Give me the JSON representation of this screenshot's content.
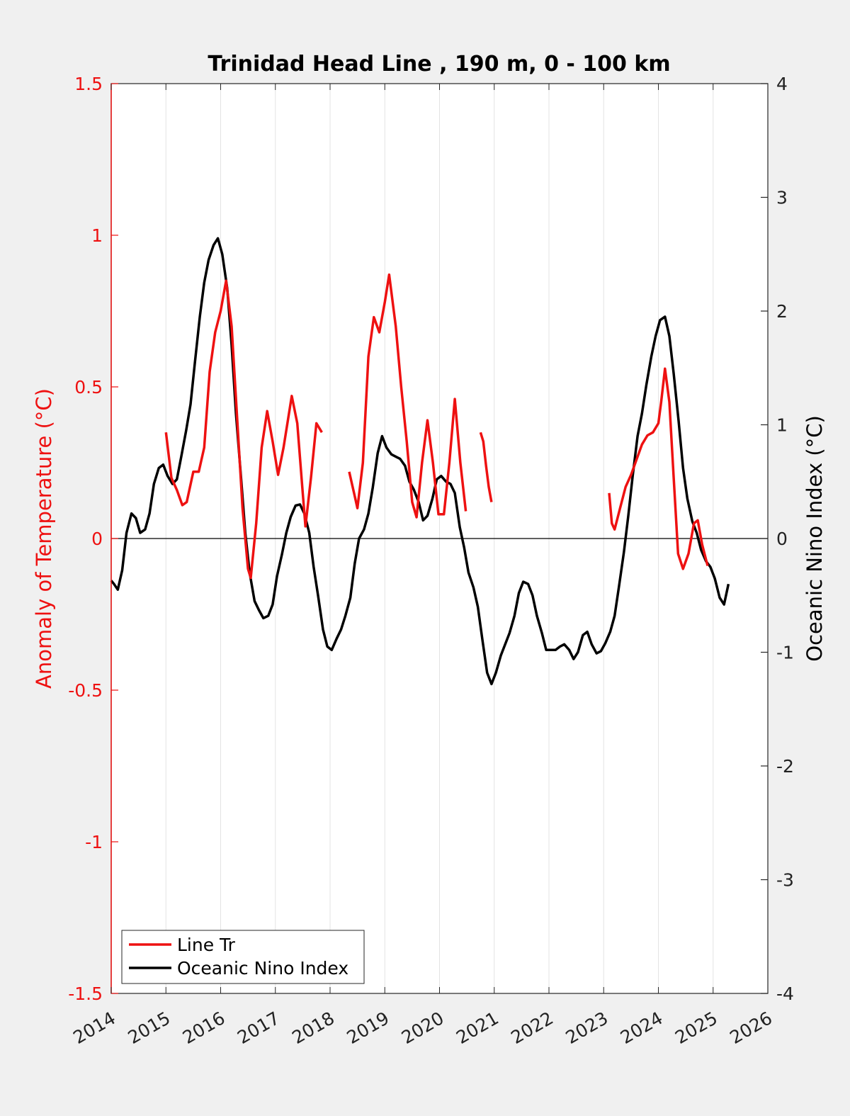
{
  "chart_data": {
    "type": "line",
    "title": "Trinidad Head Line , 190 m, 0 - 100 km",
    "xlabel": "",
    "ylabel_left": "Anomaly of Temperature (°C)",
    "ylabel_right": "Oceanic Nino Index (°C)",
    "xlim": [
      2014,
      2026
    ],
    "ylim_left": [
      -1.5,
      1.5
    ],
    "ylim_right": [
      -4,
      4
    ],
    "x_ticks": [
      "2014",
      "2015",
      "2016",
      "2017",
      "2018",
      "2019",
      "2020",
      "2021",
      "2022",
      "2023",
      "2024",
      "2025",
      "2026"
    ],
    "y_left_ticks": [
      "1.5",
      "1",
      "0.5",
      "0",
      "-0.5",
      "-1",
      "-1.5"
    ],
    "y_right_ticks": [
      "4",
      "3",
      "2",
      "1",
      "0",
      "-1",
      "-2",
      "-3",
      "-4"
    ],
    "grid": "vertical",
    "legend_position": "bottom-left",
    "colors": {
      "left_axis": "#ee1111",
      "line_tr": "#ee1111",
      "oni": "#000000"
    },
    "series": [
      {
        "name": "Line Tr",
        "axis": "left",
        "color": "#ee1111",
        "segments": [
          [
            [
              2015.0,
              0.35
            ],
            [
              2015.1,
              0.2
            ],
            [
              2015.2,
              0.16
            ],
            [
              2015.3,
              0.11
            ],
            [
              2015.38,
              0.12
            ],
            [
              2015.5,
              0.22
            ],
            [
              2015.6,
              0.22
            ],
            [
              2015.7,
              0.3
            ],
            [
              2015.8,
              0.55
            ],
            [
              2015.9,
              0.68
            ],
            [
              2016.0,
              0.75
            ],
            [
              2016.1,
              0.85
            ],
            [
              2016.2,
              0.7
            ],
            [
              2016.3,
              0.4
            ],
            [
              2016.4,
              0.1
            ],
            [
              2016.5,
              -0.1
            ],
            [
              2016.55,
              -0.13
            ],
            [
              2016.65,
              0.05
            ],
            [
              2016.75,
              0.3
            ],
            [
              2016.85,
              0.42
            ],
            [
              2016.95,
              0.32
            ],
            [
              2017.05,
              0.21
            ],
            [
              2017.15,
              0.3
            ],
            [
              2017.3,
              0.47
            ],
            [
              2017.4,
              0.38
            ],
            [
              2017.5,
              0.15
            ],
            [
              2017.55,
              0.04
            ],
            [
              2017.65,
              0.2
            ],
            [
              2017.75,
              0.38
            ],
            [
              2017.85,
              0.35
            ]
          ],
          [
            [
              2018.35,
              0.22
            ],
            [
              2018.45,
              0.14
            ],
            [
              2018.5,
              0.1
            ],
            [
              2018.6,
              0.25
            ],
            [
              2018.7,
              0.6
            ],
            [
              2018.8,
              0.73
            ],
            [
              2018.9,
              0.68
            ],
            [
              2019.0,
              0.78
            ],
            [
              2019.08,
              0.87
            ],
            [
              2019.2,
              0.7
            ],
            [
              2019.3,
              0.5
            ],
            [
              2019.4,
              0.32
            ],
            [
              2019.5,
              0.12
            ],
            [
              2019.58,
              0.07
            ],
            [
              2019.68,
              0.25
            ],
            [
              2019.78,
              0.39
            ],
            [
              2019.88,
              0.25
            ],
            [
              2019.98,
              0.08
            ],
            [
              2020.08,
              0.08
            ],
            [
              2020.18,
              0.25
            ],
            [
              2020.28,
              0.46
            ],
            [
              2020.38,
              0.25
            ],
            [
              2020.48,
              0.09
            ]
          ],
          [
            [
              2020.75,
              0.35
            ],
            [
              2020.8,
              0.32
            ],
            [
              2020.85,
              0.24
            ],
            [
              2020.9,
              0.17
            ],
            [
              2020.95,
              0.12
            ]
          ],
          [
            [
              2023.1,
              0.15
            ],
            [
              2023.15,
              0.05
            ],
            [
              2023.2,
              0.03
            ],
            [
              2023.3,
              0.1
            ],
            [
              2023.4,
              0.17
            ],
            [
              2023.5,
              0.21
            ],
            [
              2023.6,
              0.26
            ],
            [
              2023.7,
              0.31
            ],
            [
              2023.8,
              0.34
            ],
            [
              2023.9,
              0.35
            ],
            [
              2024.0,
              0.38
            ],
            [
              2024.05,
              0.45
            ],
            [
              2024.12,
              0.56
            ],
            [
              2024.2,
              0.45
            ],
            [
              2024.28,
              0.2
            ],
            [
              2024.36,
              -0.05
            ],
            [
              2024.45,
              -0.1
            ],
            [
              2024.55,
              -0.05
            ],
            [
              2024.65,
              0.05
            ],
            [
              2024.72,
              0.06
            ],
            [
              2024.8,
              -0.02
            ],
            [
              2024.9,
              -0.09
            ]
          ]
        ]
      },
      {
        "name": "Oceanic Nino Index",
        "axis": "right",
        "color": "#000000",
        "segments": [
          [
            [
              2014.0,
              -0.37
            ],
            [
              2014.05,
              -0.4
            ],
            [
              2014.12,
              -0.45
            ],
            [
              2014.2,
              -0.28
            ],
            [
              2014.28,
              0.05
            ],
            [
              2014.37,
              0.22
            ],
            [
              2014.45,
              0.18
            ],
            [
              2014.53,
              0.05
            ],
            [
              2014.62,
              0.08
            ],
            [
              2014.7,
              0.22
            ],
            [
              2014.78,
              0.48
            ],
            [
              2014.87,
              0.62
            ],
            [
              2014.95,
              0.65
            ],
            [
              2015.03,
              0.55
            ],
            [
              2015.12,
              0.48
            ],
            [
              2015.2,
              0.52
            ],
            [
              2015.28,
              0.72
            ],
            [
              2015.37,
              0.95
            ],
            [
              2015.45,
              1.18
            ],
            [
              2015.53,
              1.55
            ],
            [
              2015.62,
              1.95
            ],
            [
              2015.7,
              2.25
            ],
            [
              2015.78,
              2.45
            ],
            [
              2015.87,
              2.58
            ],
            [
              2015.95,
              2.64
            ],
            [
              2016.03,
              2.5
            ],
            [
              2016.12,
              2.2
            ],
            [
              2016.2,
              1.7
            ],
            [
              2016.28,
              1.1
            ],
            [
              2016.37,
              0.55
            ],
            [
              2016.45,
              0.05
            ],
            [
              2016.53,
              -0.3
            ],
            [
              2016.62,
              -0.55
            ],
            [
              2016.7,
              -0.63
            ],
            [
              2016.78,
              -0.7
            ],
            [
              2016.87,
              -0.68
            ],
            [
              2016.95,
              -0.58
            ],
            [
              2017.03,
              -0.33
            ],
            [
              2017.12,
              -0.14
            ],
            [
              2017.2,
              0.05
            ],
            [
              2017.28,
              0.19
            ],
            [
              2017.37,
              0.29
            ],
            [
              2017.45,
              0.3
            ],
            [
              2017.53,
              0.22
            ],
            [
              2017.62,
              0.05
            ],
            [
              2017.7,
              -0.25
            ],
            [
              2017.78,
              -0.5
            ],
            [
              2017.87,
              -0.8
            ],
            [
              2017.95,
              -0.95
            ],
            [
              2018.03,
              -0.98
            ],
            [
              2018.12,
              -0.88
            ],
            [
              2018.2,
              -0.8
            ],
            [
              2018.28,
              -0.68
            ],
            [
              2018.37,
              -0.52
            ],
            [
              2018.45,
              -0.22
            ],
            [
              2018.53,
              0.0
            ],
            [
              2018.62,
              0.08
            ],
            [
              2018.7,
              0.22
            ],
            [
              2018.78,
              0.45
            ],
            [
              2018.87,
              0.75
            ],
            [
              2018.95,
              0.9
            ],
            [
              2019.03,
              0.8
            ],
            [
              2019.12,
              0.74
            ],
            [
              2019.2,
              0.72
            ],
            [
              2019.28,
              0.7
            ],
            [
              2019.37,
              0.64
            ],
            [
              2019.45,
              0.5
            ],
            [
              2019.53,
              0.43
            ],
            [
              2019.62,
              0.32
            ],
            [
              2019.7,
              0.16
            ],
            [
              2019.78,
              0.2
            ],
            [
              2019.87,
              0.35
            ],
            [
              2019.95,
              0.52
            ],
            [
              2020.03,
              0.55
            ],
            [
              2020.12,
              0.5
            ],
            [
              2020.2,
              0.48
            ],
            [
              2020.28,
              0.4
            ],
            [
              2020.37,
              0.1
            ],
            [
              2020.45,
              -0.08
            ],
            [
              2020.53,
              -0.3
            ],
            [
              2020.62,
              -0.43
            ],
            [
              2020.7,
              -0.6
            ],
            [
              2020.78,
              -0.88
            ],
            [
              2020.87,
              -1.18
            ],
            [
              2020.95,
              -1.28
            ],
            [
              2021.03,
              -1.18
            ],
            [
              2021.12,
              -1.03
            ],
            [
              2021.2,
              -0.93
            ],
            [
              2021.28,
              -0.83
            ],
            [
              2021.37,
              -0.68
            ],
            [
              2021.45,
              -0.48
            ],
            [
              2021.53,
              -0.38
            ],
            [
              2021.62,
              -0.4
            ],
            [
              2021.7,
              -0.5
            ],
            [
              2021.78,
              -0.68
            ],
            [
              2021.87,
              -0.83
            ],
            [
              2021.95,
              -0.98
            ],
            [
              2022.03,
              -0.98
            ],
            [
              2022.12,
              -0.98
            ],
            [
              2022.2,
              -0.95
            ],
            [
              2022.28,
              -0.93
            ],
            [
              2022.37,
              -0.98
            ],
            [
              2022.45,
              -1.06
            ],
            [
              2022.53,
              -1.0
            ],
            [
              2022.62,
              -0.85
            ],
            [
              2022.7,
              -0.82
            ],
            [
              2022.78,
              -0.93
            ],
            [
              2022.87,
              -1.01
            ],
            [
              2022.95,
              -0.99
            ],
            [
              2023.03,
              -0.92
            ],
            [
              2023.12,
              -0.82
            ],
            [
              2023.2,
              -0.68
            ],
            [
              2023.28,
              -0.42
            ],
            [
              2023.37,
              -0.12
            ],
            [
              2023.45,
              0.2
            ],
            [
              2023.53,
              0.55
            ],
            [
              2023.62,
              0.9
            ],
            [
              2023.7,
              1.1
            ],
            [
              2023.78,
              1.35
            ],
            [
              2023.87,
              1.6
            ],
            [
              2023.95,
              1.78
            ],
            [
              2024.03,
              1.92
            ],
            [
              2024.12,
              1.95
            ],
            [
              2024.2,
              1.78
            ],
            [
              2024.28,
              1.45
            ],
            [
              2024.37,
              1.03
            ],
            [
              2024.45,
              0.62
            ],
            [
              2024.53,
              0.35
            ],
            [
              2024.62,
              0.15
            ],
            [
              2024.7,
              0.05
            ],
            [
              2024.78,
              -0.1
            ],
            [
              2024.87,
              -0.2
            ],
            [
              2024.95,
              -0.25
            ],
            [
              2025.03,
              -0.35
            ],
            [
              2025.12,
              -0.52
            ],
            [
              2025.2,
              -0.58
            ],
            [
              2025.28,
              -0.4
            ]
          ]
        ]
      }
    ]
  }
}
